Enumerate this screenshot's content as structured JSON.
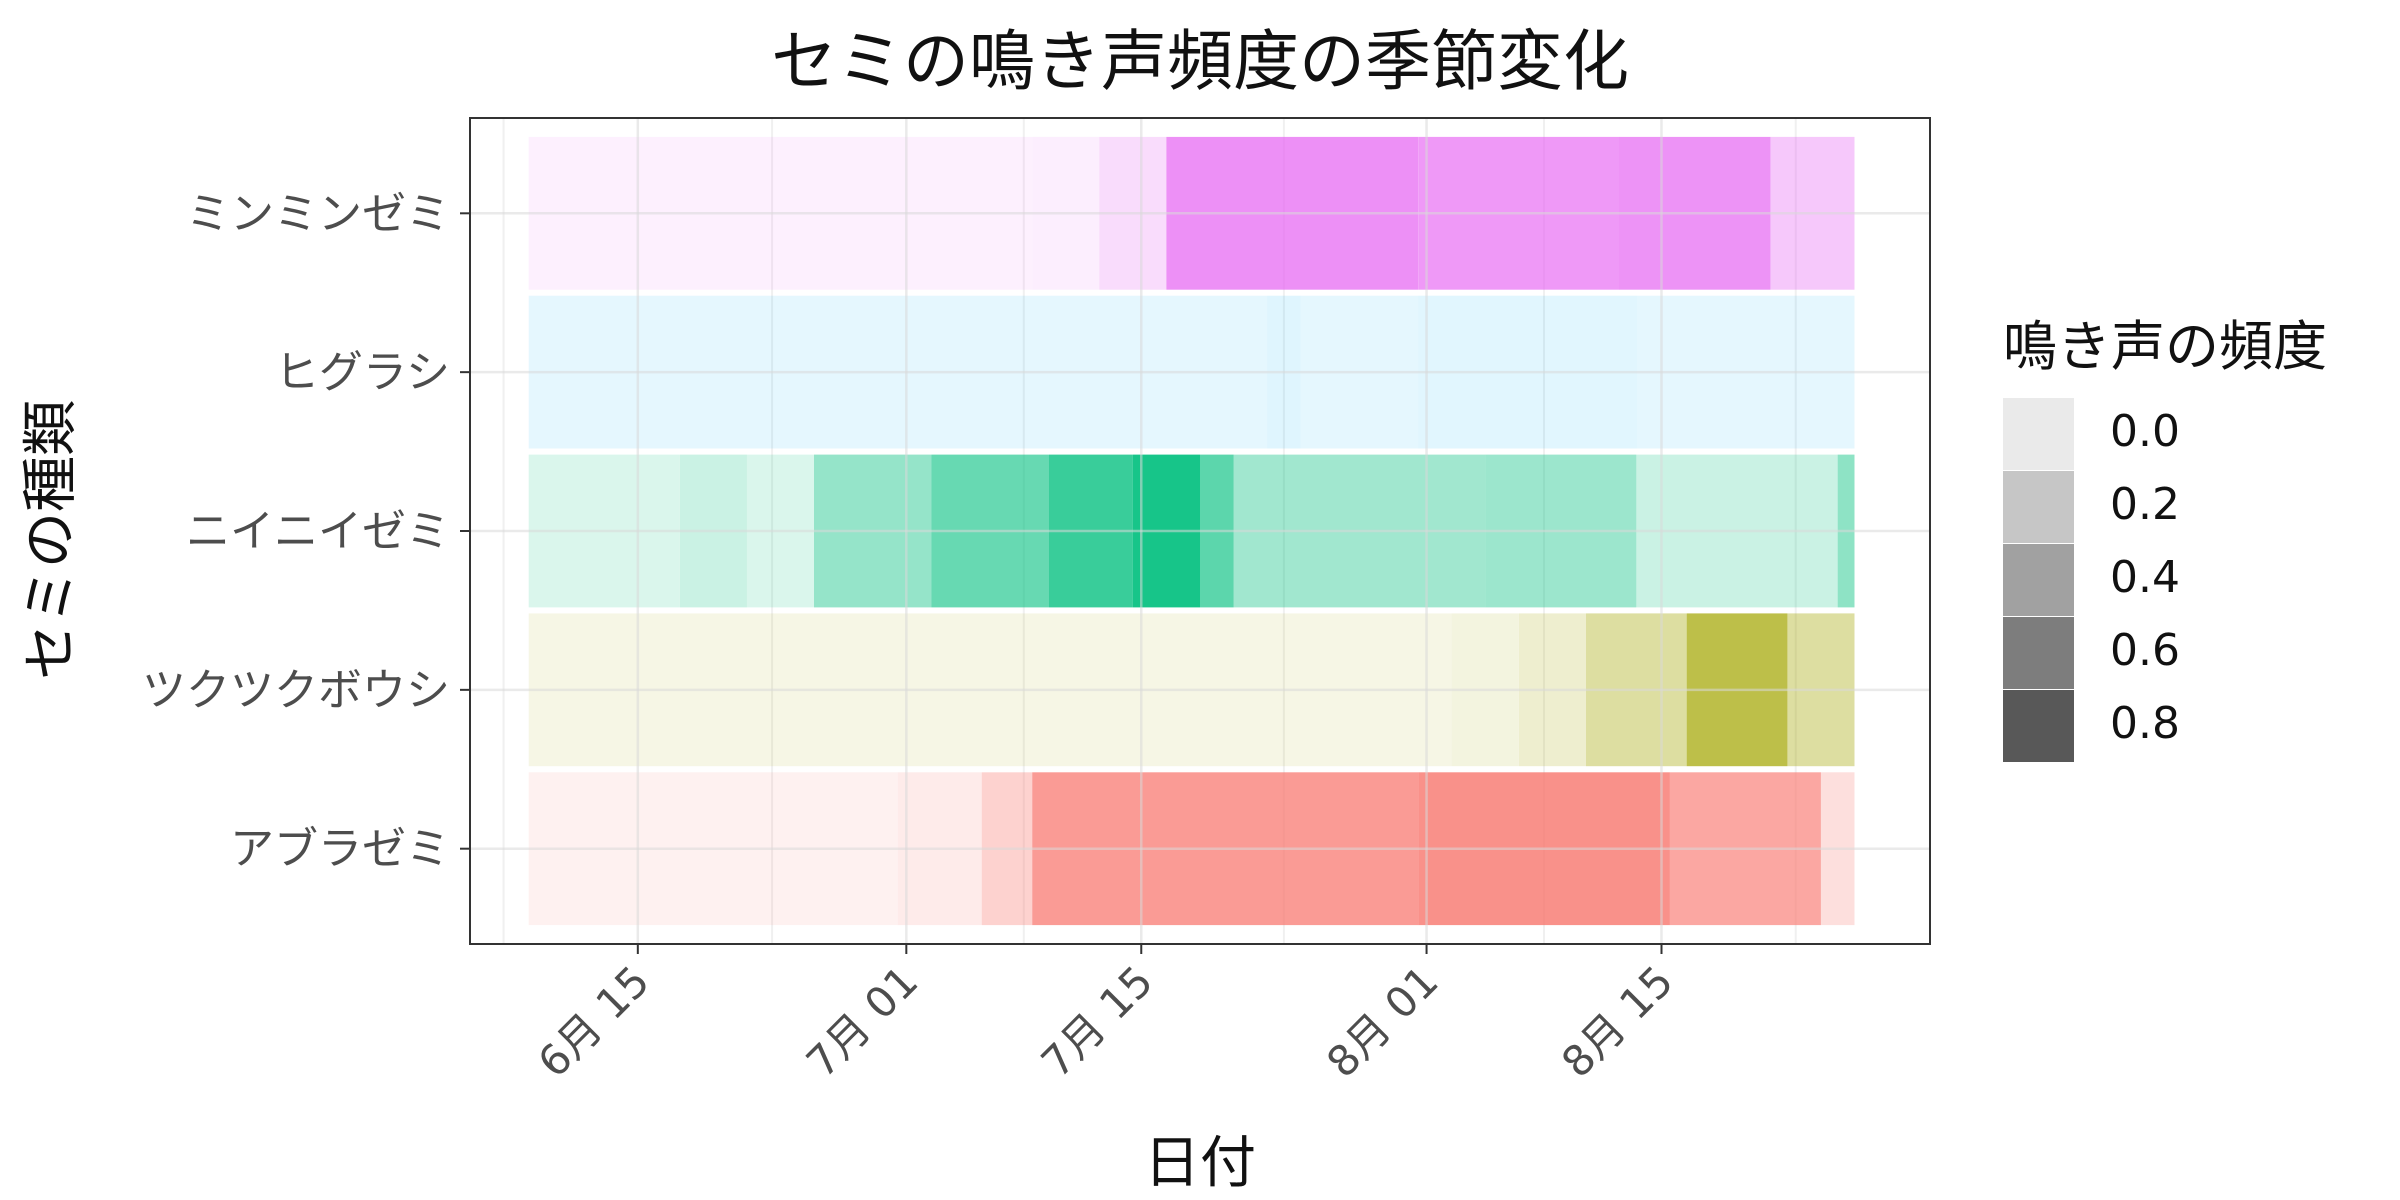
{
  "chart_data": {
    "type": "heatmap",
    "title": "セミの鳴き声頻度の季節変化",
    "xlabel": "日付",
    "ylabel": "セミの種類",
    "x_ticks": [
      "6月 15",
      "7月 01",
      "7月 15",
      "8月 01",
      "8月 15"
    ],
    "x_tick_dates": [
      "2024-06-15",
      "2024-07-01",
      "2024-07-15",
      "2024-08-01",
      "2024-08-15"
    ],
    "x_range": [
      "2024-06-05",
      "2024-08-31"
    ],
    "dates_start": "2024-06-09",
    "dates_end": "2024-08-26",
    "categories": [
      "ミンミンゼミ",
      "ヒグラシ",
      "ニイニイゼミ",
      "ツクツクボウシ",
      "アブラゼミ"
    ],
    "series": [
      {
        "name": "ミンミンゼミ",
        "color": "#E76BF3",
        "segments": [
          {
            "start": "2024-06-09",
            "end": "2024-07-08",
            "value": 0.0
          },
          {
            "start": "2024-07-09",
            "end": "2024-07-12",
            "value": 0.02
          },
          {
            "start": "2024-07-13",
            "end": "2024-07-16",
            "value": 0.15
          },
          {
            "start": "2024-07-17",
            "end": "2024-07-31",
            "value": 0.72
          },
          {
            "start": "2024-08-01",
            "end": "2024-08-12",
            "value": 0.65
          },
          {
            "start": "2024-08-13",
            "end": "2024-08-21",
            "value": 0.7
          },
          {
            "start": "2024-08-22",
            "end": "2024-08-26",
            "value": 0.3
          }
        ]
      },
      {
        "name": "ヒグラシ",
        "color": "#00B0F6",
        "segments": [
          {
            "start": "2024-06-09",
            "end": "2024-07-22",
            "value": 0.0
          },
          {
            "start": "2024-07-23",
            "end": "2024-07-24",
            "value": 0.03
          },
          {
            "start": "2024-07-25",
            "end": "2024-07-31",
            "value": 0.0
          },
          {
            "start": "2024-08-01",
            "end": "2024-08-13",
            "value": 0.02
          },
          {
            "start": "2024-08-14",
            "end": "2024-08-26",
            "value": 0.0
          }
        ]
      },
      {
        "name": "ニイニイゼミ",
        "color": "#00BF7D",
        "segments": [
          {
            "start": "2024-06-09",
            "end": "2024-06-17",
            "value": 0.05
          },
          {
            "start": "2024-06-18",
            "end": "2024-06-21",
            "value": 0.12
          },
          {
            "start": "2024-06-22",
            "end": "2024-06-25",
            "value": 0.05
          },
          {
            "start": "2024-06-26",
            "end": "2024-07-02",
            "value": 0.35
          },
          {
            "start": "2024-07-03",
            "end": "2024-07-09",
            "value": 0.55
          },
          {
            "start": "2024-07-10",
            "end": "2024-07-14",
            "value": 0.75
          },
          {
            "start": "2024-07-15",
            "end": "2024-07-18",
            "value": 0.9
          },
          {
            "start": "2024-07-19",
            "end": "2024-07-20",
            "value": 0.6
          },
          {
            "start": "2024-07-21",
            "end": "2024-08-04",
            "value": 0.3
          },
          {
            "start": "2024-08-05",
            "end": "2024-08-13",
            "value": 0.32
          },
          {
            "start": "2024-08-14",
            "end": "2024-08-25",
            "value": 0.12
          },
          {
            "start": "2024-08-26",
            "end": "2024-08-26",
            "value": 0.38
          }
        ]
      },
      {
        "name": "ツクツクボウシ",
        "color": "#A3A500",
        "segments": [
          {
            "start": "2024-06-09",
            "end": "2024-08-02",
            "value": 0.0
          },
          {
            "start": "2024-08-03",
            "end": "2024-08-06",
            "value": 0.03
          },
          {
            "start": "2024-08-07",
            "end": "2024-08-10",
            "value": 0.1
          },
          {
            "start": "2024-08-11",
            "end": "2024-08-16",
            "value": 0.3
          },
          {
            "start": "2024-08-17",
            "end": "2024-08-22",
            "value": 0.68
          },
          {
            "start": "2024-08-23",
            "end": "2024-08-26",
            "value": 0.3
          }
        ]
      },
      {
        "name": "アブラゼミ",
        "color": "#F8766D",
        "segments": [
          {
            "start": "2024-06-09",
            "end": "2024-06-30",
            "value": 0.0
          },
          {
            "start": "2024-07-01",
            "end": "2024-07-05",
            "value": 0.05
          },
          {
            "start": "2024-07-06",
            "end": "2024-07-08",
            "value": 0.25
          },
          {
            "start": "2024-07-09",
            "end": "2024-07-31",
            "value": 0.7
          },
          {
            "start": "2024-08-01",
            "end": "2024-08-15",
            "value": 0.78
          },
          {
            "start": "2024-08-16",
            "end": "2024-08-24",
            "value": 0.6
          },
          {
            "start": "2024-08-25",
            "end": "2024-08-26",
            "value": 0.15
          }
        ]
      }
    ],
    "legend": {
      "title": "鳴き声の頻度",
      "position": "right",
      "items": [
        "0.0",
        "0.2",
        "0.4",
        "0.6",
        "0.8"
      ],
      "values": [
        0.0,
        0.2,
        0.4,
        0.6,
        0.8
      ]
    },
    "grid": true
  }
}
